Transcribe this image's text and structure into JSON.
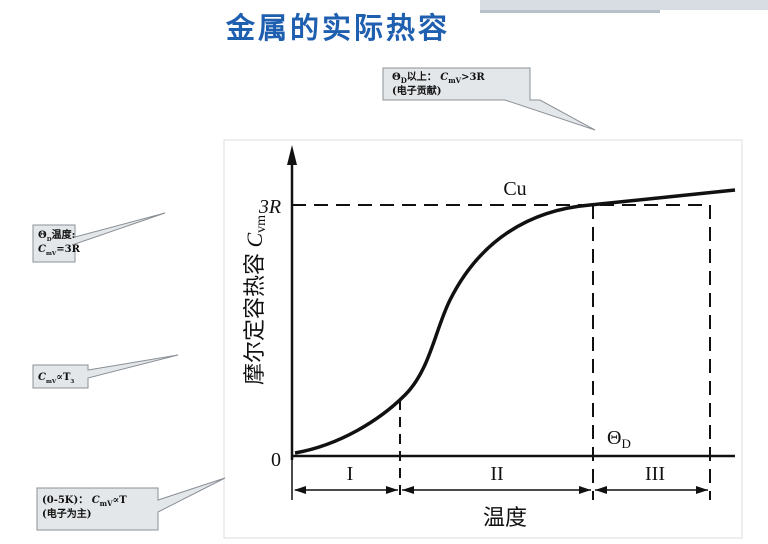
{
  "header": {
    "title": "金属的实际热容"
  },
  "figure": {
    "y_axis_label": [
      "摩尔定容热容 ",
      "C",
      "vm"
    ],
    "y_label_top": "3R",
    "y_label_zero": "0",
    "curve_label": "Cu",
    "debye_label": [
      "Θ",
      "D"
    ],
    "regions": [
      "I",
      "II",
      "III"
    ],
    "x_axis_label": "温度"
  },
  "callouts": [
    {
      "lines": [
        [
          "Θ",
          "D",
          "以上：  ",
          "C",
          "mV",
          ">3R"
        ],
        [
          "(电子贡献)"
        ]
      ]
    },
    {
      "lines": [
        [
          "Θ",
          "D",
          "温度:"
        ],
        [
          "C",
          "mV",
          "=3R"
        ]
      ]
    },
    {
      "lines": [
        [
          "C",
          "mV",
          "∝T",
          "3"
        ]
      ]
    },
    {
      "lines": [
        [
          "(0-5K)：  ",
          "C",
          "mV",
          "∝T"
        ],
        [
          "(电子为主)"
        ]
      ]
    }
  ]
}
